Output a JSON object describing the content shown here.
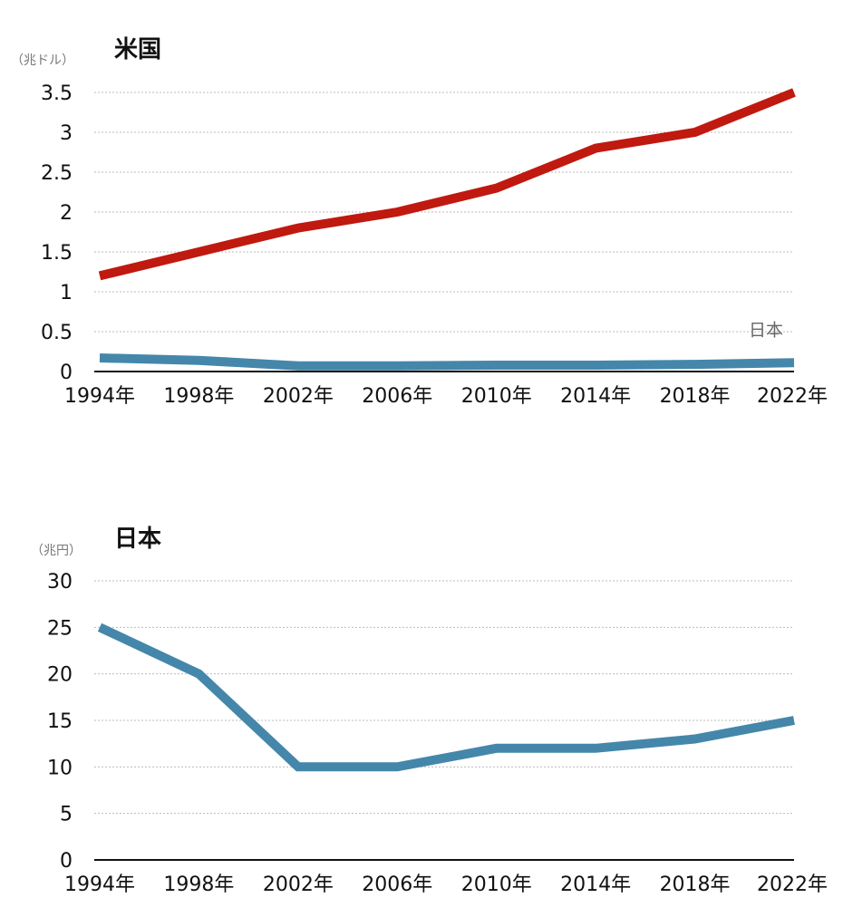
{
  "chart_data": [
    {
      "type": "line",
      "title": "米国",
      "unit": "（兆ドル）",
      "x": [
        "1994年",
        "1998年",
        "2002年",
        "2006年",
        "2010年",
        "2014年",
        "2018年",
        "2022年"
      ],
      "ylim": [
        0,
        3.5
      ],
      "yticks": [
        0,
        0.5,
        1,
        1.5,
        2,
        2.5,
        3,
        3.5
      ],
      "ytick_labels": [
        "0",
        "0.5",
        "1",
        "1.5",
        "2",
        "2.5",
        "3",
        "3.5"
      ],
      "grid": true,
      "series": [
        {
          "values": [
            1.2,
            1.5,
            1.8,
            2.0,
            2.3,
            2.8,
            3.0,
            3.5
          ],
          "color": "#c0190f"
        },
        {
          "name": "日本",
          "values": [
            0.17,
            0.14,
            0.07,
            0.07,
            0.08,
            0.08,
            0.09,
            0.11
          ],
          "color": "#4487aa"
        }
      ]
    },
    {
      "type": "line",
      "title": "日本",
      "unit": "（兆円）",
      "x": [
        "1994年",
        "1998年",
        "2002年",
        "2006年",
        "2010年",
        "2014年",
        "2018年",
        "2022年"
      ],
      "ylim": [
        0,
        30
      ],
      "yticks": [
        0,
        5,
        10,
        15,
        20,
        25,
        30
      ],
      "ytick_labels": [
        "0",
        "5",
        "10",
        "15",
        "20",
        "25",
        "30"
      ],
      "grid": true,
      "series": [
        {
          "values": [
            25,
            20,
            10,
            10,
            12,
            12,
            13,
            15
          ],
          "color": "#4487aa"
        }
      ]
    }
  ]
}
